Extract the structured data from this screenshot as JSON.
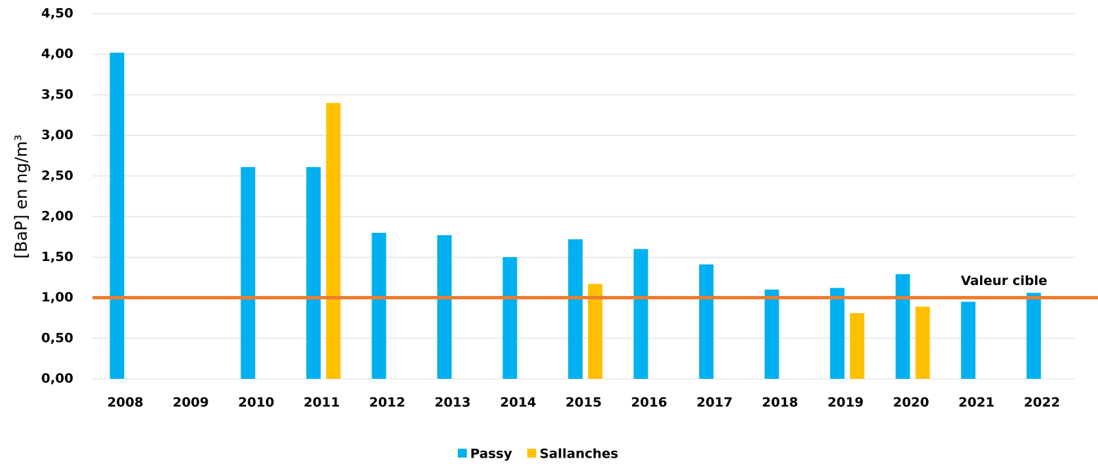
{
  "chart_data": {
    "type": "bar",
    "y_label": "[BaP] en ng/m³",
    "categories": [
      "2008",
      "2009",
      "2010",
      "2011",
      "2012",
      "2013",
      "2014",
      "2015",
      "2016",
      "2017",
      "2018",
      "2019",
      "2020",
      "2021",
      "2022"
    ],
    "series": [
      {
        "name": "Passy",
        "color": "#00b0f0",
        "values": [
          4.02,
          null,
          2.61,
          2.61,
          1.8,
          1.77,
          1.5,
          1.72,
          1.6,
          1.41,
          1.1,
          1.12,
          1.29,
          0.95,
          1.06
        ]
      },
      {
        "name": "Sallanches",
        "color": "#ffc000",
        "values": [
          null,
          null,
          null,
          3.4,
          null,
          null,
          null,
          1.17,
          null,
          null,
          null,
          0.81,
          0.89,
          null,
          null
        ]
      }
    ],
    "reference_line": {
      "value": 1,
      "label": "Valeur cible",
      "color": "#ed7d31"
    },
    "ylim": [
      0,
      4.5
    ],
    "yticks": [
      {
        "value": 0,
        "label": "0,00"
      },
      {
        "value": 0.5,
        "label": "0,50"
      },
      {
        "value": 1,
        "label": "1,00"
      },
      {
        "value": 1.5,
        "label": "1,50"
      },
      {
        "value": 2,
        "label": "2,00"
      },
      {
        "value": 2.5,
        "label": "2,50"
      },
      {
        "value": 3,
        "label": "3,00"
      },
      {
        "value": 3.5,
        "label": "3,50"
      },
      {
        "value": 4,
        "label": "4,00"
      },
      {
        "value": 4.5,
        "label": "4,50"
      }
    ],
    "grid": true,
    "legend": "bottom"
  }
}
